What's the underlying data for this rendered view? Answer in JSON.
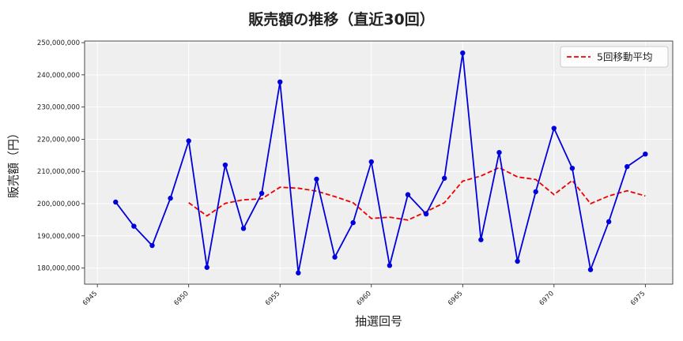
{
  "chart_data": {
    "type": "line",
    "title": "販売額の推移（直近30回）",
    "xlabel": "抽選回号",
    "ylabel": "販売額（円）",
    "xlim": [
      6944.3,
      6976.5
    ],
    "ylim": [
      175000000,
      250500000
    ],
    "xticks": [
      6945,
      6950,
      6955,
      6960,
      6965,
      6970,
      6975
    ],
    "xtick_labels": [
      "6945",
      "6950",
      "6955",
      "6960",
      "6965",
      "6970",
      "6975"
    ],
    "yticks": [
      180000000,
      190000000,
      200000000,
      210000000,
      220000000,
      230000000,
      240000000,
      250000000
    ],
    "ytick_labels": [
      "180,000,000",
      "190,000,000",
      "200,000,000",
      "210,000,000",
      "220,000,000",
      "230,000,000",
      "240,000,000",
      "250,000,000"
    ],
    "grid": true,
    "legend_position": "top-right",
    "x": [
      6946,
      6947,
      6948,
      6949,
      6950,
      6951,
      6952,
      6953,
      6954,
      6955,
      6956,
      6957,
      6958,
      6959,
      6960,
      6961,
      6962,
      6963,
      6964,
      6965,
      6966,
      6967,
      6968,
      6969,
      6970,
      6971,
      6972,
      6973,
      6974,
      6975
    ],
    "series": [
      {
        "name": "",
        "color": "#0000dd",
        "style": "solid-with-markers",
        "values": [
          200500000,
          193000000,
          187000000,
          201700000,
          219500000,
          180200000,
          212000000,
          192300000,
          203200000,
          237800000,
          178500000,
          207600000,
          183400000,
          194100000,
          213000000,
          180800000,
          202800000,
          196800000,
          207900000,
          246800000,
          188800000,
          215900000,
          182100000,
          203700000,
          223400000,
          211000000,
          179500000,
          194400000,
          211500000,
          215400000
        ]
      },
      {
        "name": "5回移動平均",
        "color": "#ee0000",
        "style": "dashed",
        "x": [
          6950,
          6951,
          6952,
          6953,
          6954,
          6955,
          6956,
          6957,
          6958,
          6959,
          6960,
          6961,
          6962,
          6963,
          6964,
          6965,
          6966,
          6967,
          6968,
          6969,
          6970,
          6971,
          6972,
          6973,
          6974,
          6975
        ],
        "values": [
          200300000,
          196200000,
          200100000,
          201200000,
          201500000,
          205100000,
          204800000,
          203900000,
          202200000,
          200300000,
          195400000,
          195800000,
          194900000,
          197500000,
          200300000,
          207000000,
          208600000,
          211200000,
          208300000,
          207500000,
          202800000,
          207200000,
          200000000,
          202400000,
          204000000,
          202400000
        ]
      }
    ]
  }
}
